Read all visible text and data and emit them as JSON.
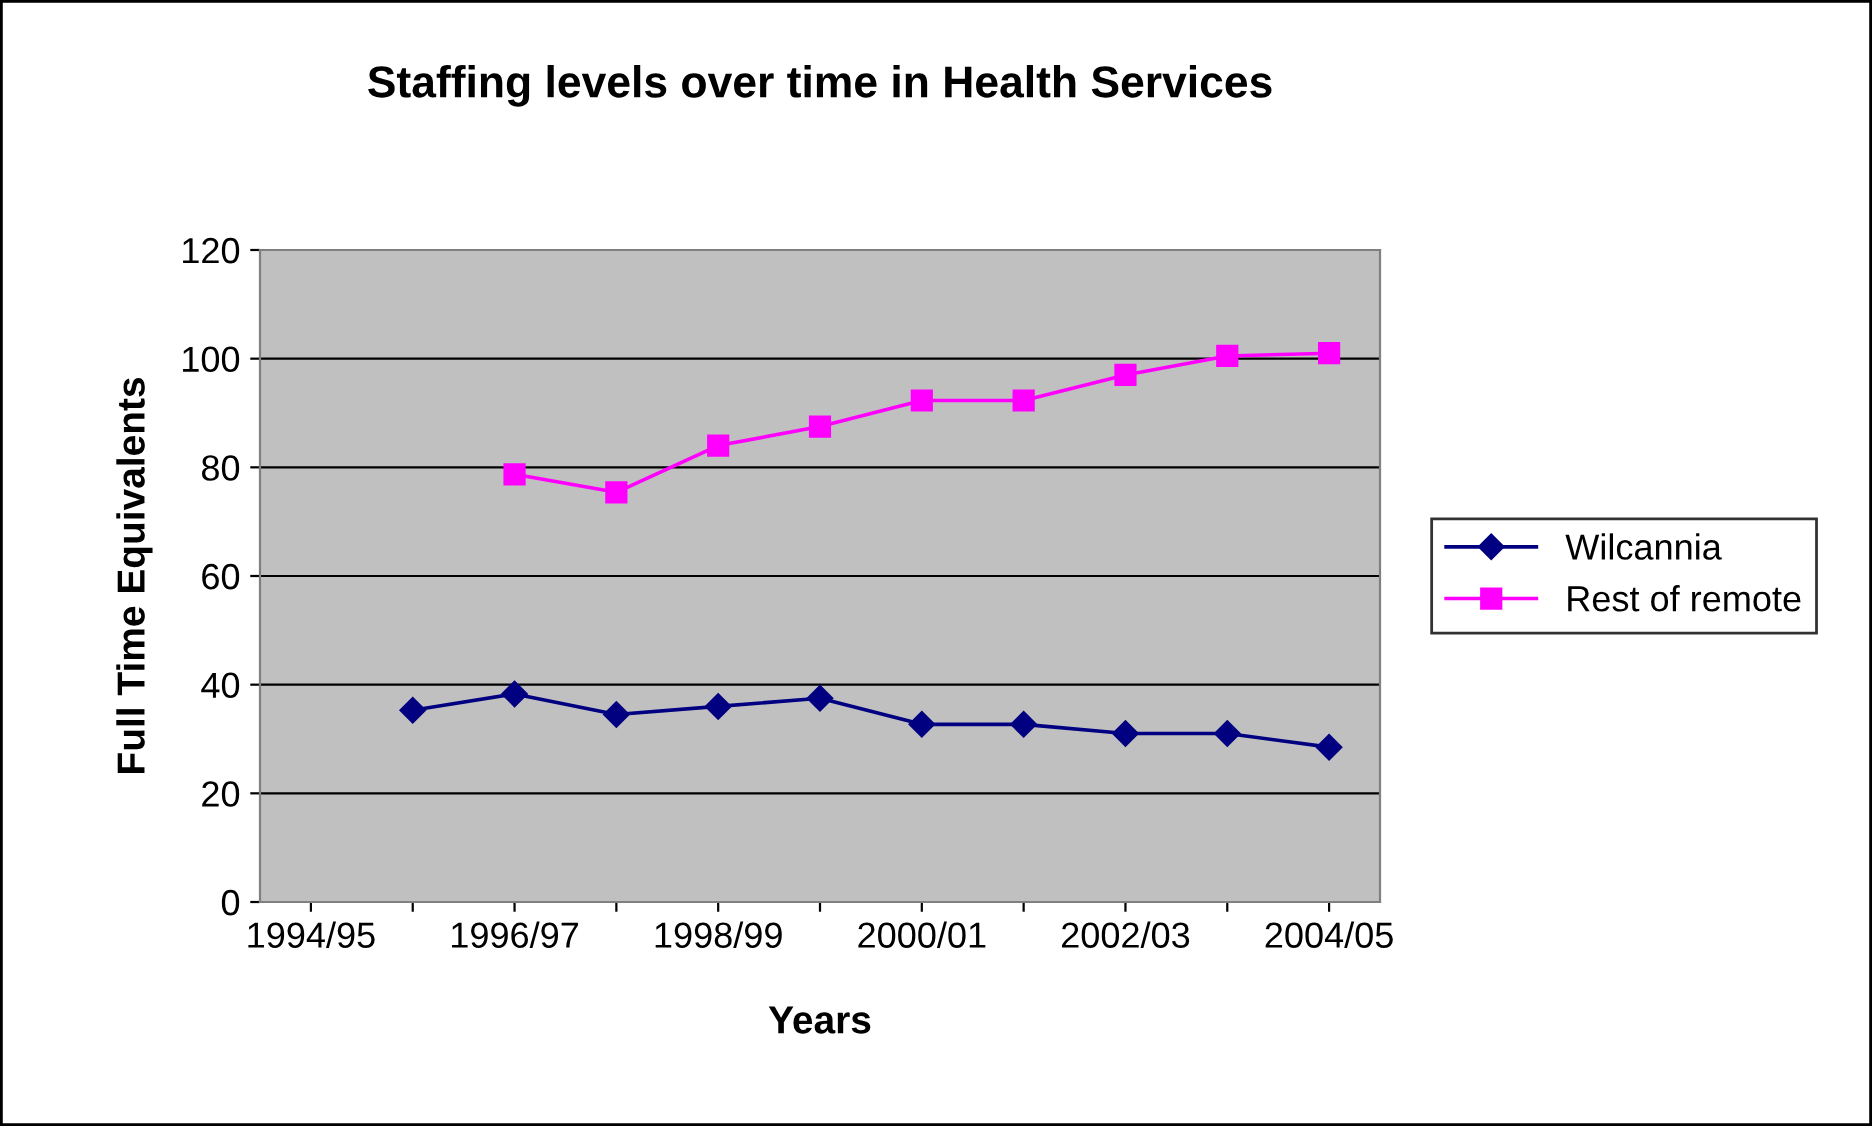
{
  "chart_data": {
    "type": "line",
    "title": "Staffing levels over time in Health Services",
    "xlabel": "Years",
    "ylabel": "Full Time Equivalents",
    "categories": [
      "1994/95",
      null,
      "1996/97",
      null,
      "1998/99",
      null,
      "2000/01",
      null,
      "2002/03",
      null,
      "2004/05"
    ],
    "series": [
      {
        "name": "Wilcannia",
        "color": "#000080",
        "marker": "diamond",
        "values": [
          null,
          35.3,
          38.3,
          34.5,
          36,
          37.5,
          32.7,
          32.7,
          31,
          31,
          28.5
        ]
      },
      {
        "name": "Rest of remote",
        "color": "#ff00ff",
        "marker": "square",
        "values": [
          null,
          null,
          78.7,
          75.4,
          84,
          87.5,
          92.3,
          92.3,
          97,
          100.5,
          101
        ]
      }
    ],
    "ylim": [
      0,
      120
    ],
    "yticks": [
      0,
      20,
      40,
      60,
      80,
      100,
      120
    ],
    "grid": "y",
    "legend": "right",
    "line_style": "solid"
  }
}
